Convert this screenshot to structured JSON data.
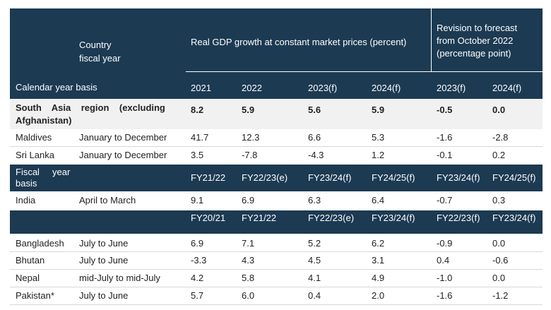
{
  "header": {
    "country_line1": "Country",
    "country_line2": "fiscal year",
    "gdp_title": "Real GDP growth at constant market prices (percent)",
    "revision_line1": "Revision  to  forecast",
    "revision_line2": "from  October  2022",
    "revision_line3": "(percentage point)",
    "calendar_label": "Calendar year basis",
    "years": [
      "2021",
      "2022",
      "2023(f)",
      "2024(f)"
    ],
    "rev_years": [
      "2023(f)",
      "2024(f)"
    ]
  },
  "region": {
    "name_line1": "South    Asia    region    (excluding",
    "name_line2": "Afghanistan)",
    "values": [
      "8.2",
      "5.9",
      "5.6",
      "5.9"
    ],
    "revisions": [
      "-0.5",
      "0.0"
    ]
  },
  "calendar_rows": [
    {
      "country": "Maldives",
      "fy": "January to December",
      "values": [
        "41.7",
        "12.3",
        "6.6",
        "5.3"
      ],
      "revisions": [
        "-1.6",
        "-2.8"
      ]
    },
    {
      "country": "Sri Lanka",
      "fy": "January to December",
      "values": [
        "3.5",
        "-7.8",
        "-4.3",
        "1.2"
      ],
      "revisions": [
        "-0.1",
        "0.2"
      ]
    }
  ],
  "fiscal_header": {
    "label_line1": "Fiscal     year",
    "label_line2": "basis",
    "years": [
      "FY21/22",
      "FY22/23(e)",
      "FY23/24(f)",
      "FY24/25(f)"
    ],
    "rev_years": [
      "FY23/24(f)",
      "FY24/25(f)"
    ]
  },
  "india": {
    "country": "India",
    "fy": "April to March",
    "values": [
      "9.1",
      "6.9",
      "6.3",
      "6.4"
    ],
    "revisions": [
      "-0.7",
      "0.3"
    ]
  },
  "fiscal_header2": {
    "years": [
      "FY20/21",
      "FY21/22",
      "FY22/23(e)",
      "FY23/24(f)"
    ],
    "rev_years": [
      "FY22/23(f)",
      "FY23/24(f)"
    ]
  },
  "fiscal_rows": [
    {
      "country": "Bangladesh",
      "fy": "July to June",
      "values": [
        "6.9",
        "7.1",
        "5.2",
        "6.2"
      ],
      "revisions": [
        "-0.9",
        "0.0"
      ]
    },
    {
      "country": "Bhutan",
      "fy": "July to June",
      "values": [
        "-3.3",
        "4.3",
        "4.5",
        "3.1"
      ],
      "revisions": [
        "0.4",
        "-0.6"
      ]
    },
    {
      "country": "Nepal",
      "fy": "mid-July to mid-July",
      "values": [
        "4.2",
        "5.8",
        "4.1",
        "4.9"
      ],
      "revisions": [
        "-1.0",
        "0.0"
      ]
    },
    {
      "country": "Pakistan*",
      "fy": "July to June",
      "values": [
        "5.7",
        "6.0",
        "0.4",
        "2.0"
      ],
      "revisions": [
        "-1.6",
        "-1.2"
      ]
    }
  ],
  "colors": {
    "header_bg": "#1c3a52",
    "shade_bg": "#f1f1f1"
  }
}
